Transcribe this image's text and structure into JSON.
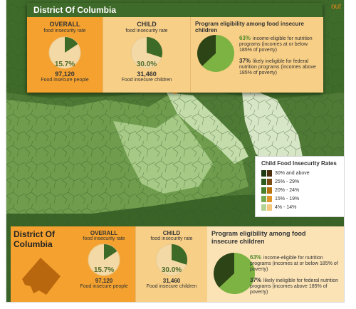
{
  "header": {
    "zoom_link": "out"
  },
  "popup": {
    "title": "District Of Columbia",
    "overall": {
      "title": "OVERALL",
      "subtitle": "food insecurity rate",
      "percent": "15.7%",
      "value": 0.157,
      "count": "97,120",
      "count_label": "Food insecure people"
    },
    "child": {
      "title": "CHILD",
      "subtitle": "food insecurity rate",
      "percent": "30.0%",
      "value": 0.3,
      "count": "31,460",
      "count_label": "Food insecure children"
    },
    "eligibility": {
      "title": "Program eligibility among food insecure children",
      "items": [
        {
          "percent": "63%",
          "text": "income-eligible for nutrition programs (incomes at or below 185% of poverty)",
          "value": 0.63
        },
        {
          "percent": "37%",
          "text": "likely ineligible for federal nutrition programs (incomes above 185% of poverty)",
          "value": 0.37
        }
      ]
    }
  },
  "legend": {
    "title": "Child Food Insecurity Rates",
    "items": [
      {
        "label": "30% and above",
        "colors": [
          "#1f3a12",
          "#4a2e0e"
        ]
      },
      {
        "label": "25% - 29%",
        "colors": [
          "#2e5a1c",
          "#7a4b12"
        ]
      },
      {
        "label": "20% - 24%",
        "colors": [
          "#4b7f2c",
          "#b8730f"
        ]
      },
      {
        "label": "15% - 19%",
        "colors": [
          "#78aa4f",
          "#e0962a"
        ]
      },
      {
        "label": "4% - 14%",
        "colors": [
          "#b3d394",
          "#f5c77d"
        ]
      }
    ]
  },
  "bottom": {
    "state_name": "District Of Columbia",
    "overall": {
      "title": "OVERALL",
      "subtitle": "food insecurity rate",
      "percent": "15.7%",
      "value": 0.157,
      "count": "97,120",
      "count_label": "Food insecure people"
    },
    "child": {
      "title": "CHILD",
      "subtitle": "food insecurity rate",
      "percent": "30.0%",
      "value": 0.3,
      "count": "31,460",
      "count_label": "Food insecure children"
    },
    "eligibility": {
      "title": "Program eligibility among food insecure children",
      "items": [
        {
          "percent": "63%",
          "text": "income-eligible for nutrition programs (incomes at or below 185% of poverty)",
          "value": 0.63
        },
        {
          "percent": "37%",
          "text": "likely ineligible for federal nutrition programs (incomes above 185% of poverty)",
          "value": 0.37
        }
      ]
    }
  },
  "colors": {
    "pie_fill": "#3d6a26",
    "pie_base": "#f3d9a6",
    "elig_light": "#7cb342",
    "elig_dark": "#2c4416"
  }
}
